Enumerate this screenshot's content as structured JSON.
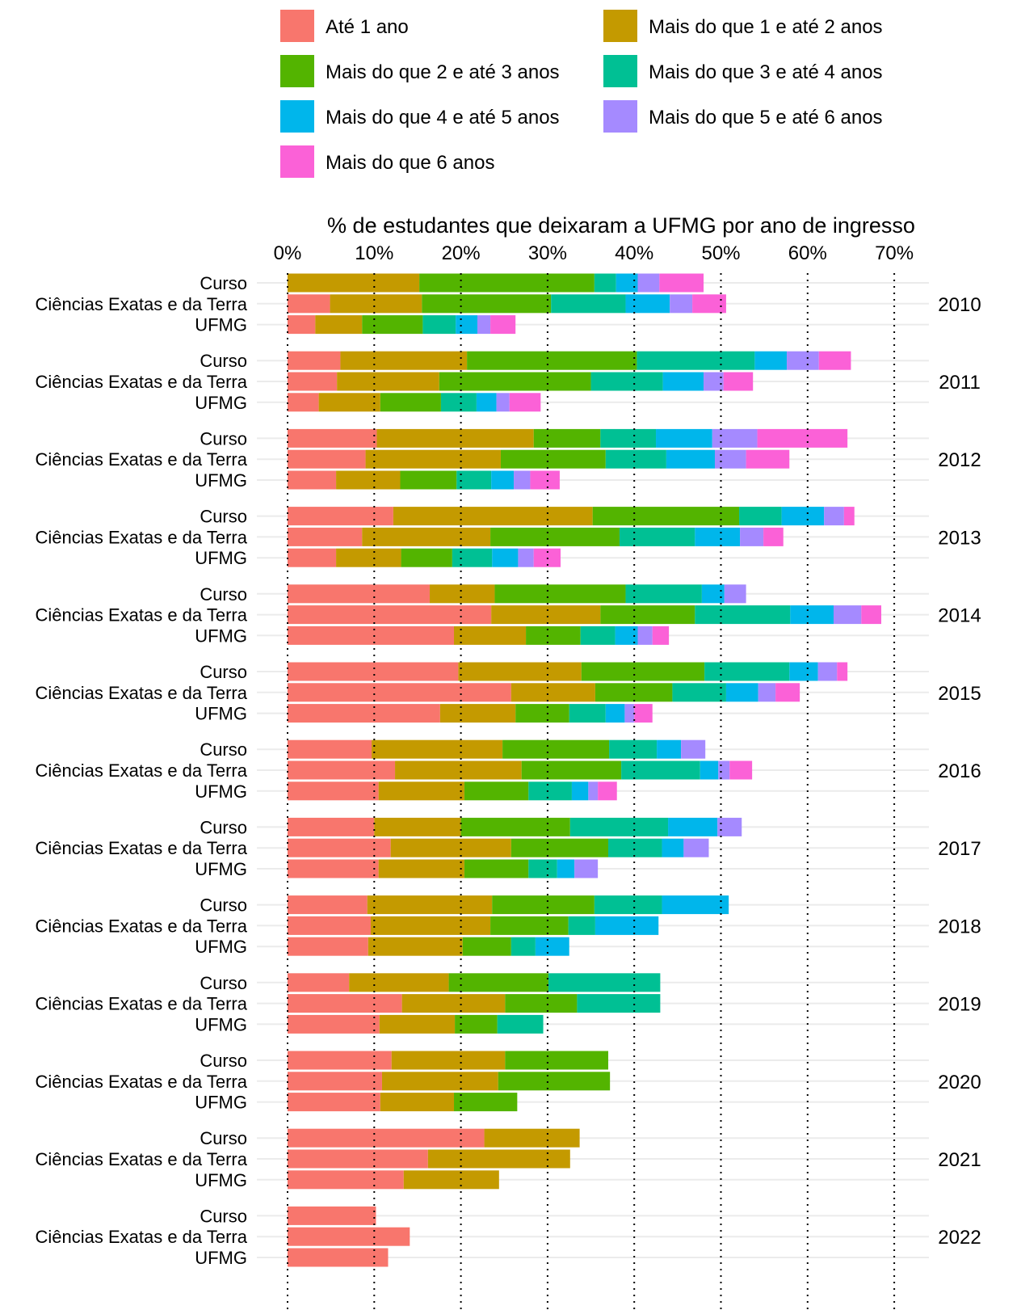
{
  "chart_data": {
    "type": "bar",
    "orientation": "horizontal",
    "stacked": true,
    "title": "% de estudantes que deixaram a UFMG por ano de ingresso",
    "x_ticks": [
      "0%",
      "10%",
      "20%",
      "30%",
      "40%",
      "50%",
      "60%",
      "70%"
    ],
    "x_tick_values": [
      0,
      10,
      20,
      30,
      40,
      50,
      60,
      70
    ],
    "xlim": [
      0,
      70
    ],
    "x_axis_position": "top",
    "grid": "dotted vertical",
    "legend_position": "top",
    "row_labels": [
      "Curso",
      "Ciências Exatas e da Terra",
      "UFMG"
    ],
    "series": [
      {
        "name": "Até 1 ano",
        "color": "#F8766D"
      },
      {
        "name": "Mais do que 1 e até 2 anos",
        "color": "#C49A00"
      },
      {
        "name": "Mais do que 2 e até 3 anos",
        "color": "#53B400"
      },
      {
        "name": "Mais do que 3 e até 4 anos",
        "color": "#00C094"
      },
      {
        "name": "Mais do que 4 e até 5 anos",
        "color": "#00B6EB"
      },
      {
        "name": "Mais do que 5 e até 6 anos",
        "color": "#A58AFF"
      },
      {
        "name": "Mais do que 6 anos",
        "color": "#FB61D7"
      }
    ],
    "groups": [
      {
        "year": "2010",
        "rows": [
          [
            0,
            15.2,
            20.2,
            2.5,
            2.5,
            2.5,
            5.1
          ],
          [
            4.9,
            10.6,
            14.9,
            8.6,
            5.1,
            2.6,
            3.9
          ],
          [
            3.2,
            5.4,
            7.0,
            3.8,
            2.5,
            1.5,
            2.9
          ]
        ]
      },
      {
        "year": "2011",
        "rows": [
          [
            6.1,
            14.6,
            19.6,
            13.6,
            3.7,
            3.7,
            3.7
          ],
          [
            5.7,
            11.8,
            17.5,
            8.3,
            4.7,
            2.3,
            3.4
          ],
          [
            3.6,
            7.1,
            7.0,
            4.1,
            2.3,
            1.5,
            3.6
          ]
        ]
      },
      {
        "year": "2012",
        "rows": [
          [
            10.3,
            18.1,
            7.7,
            6.4,
            6.5,
            5.2,
            10.4
          ],
          [
            9.0,
            15.6,
            12.1,
            7.0,
            5.6,
            3.6,
            5.0
          ],
          [
            5.6,
            7.4,
            6.5,
            4.0,
            2.6,
            1.9,
            3.4
          ]
        ]
      },
      {
        "year": "2013",
        "rows": [
          [
            12.2,
            23.0,
            16.9,
            4.9,
            4.9,
            2.3,
            1.2
          ],
          [
            8.6,
            14.8,
            14.9,
            8.7,
            5.2,
            2.7,
            2.3
          ],
          [
            5.6,
            7.5,
            5.9,
            4.6,
            3.0,
            1.8,
            3.1
          ]
        ]
      },
      {
        "year": "2014",
        "rows": [
          [
            16.4,
            7.5,
            15.1,
            8.8,
            2.6,
            2.5,
            0
          ],
          [
            23.5,
            12.6,
            10.9,
            11.0,
            5.0,
            3.2,
            2.3
          ],
          [
            19.2,
            8.3,
            6.3,
            4.0,
            2.6,
            1.7,
            1.9
          ]
        ]
      },
      {
        "year": "2015",
        "rows": [
          [
            19.7,
            14.2,
            14.2,
            9.8,
            3.3,
            2.2,
            1.2
          ],
          [
            25.8,
            9.7,
            8.9,
            6.2,
            3.7,
            2.0,
            2.8
          ],
          [
            17.6,
            8.7,
            6.2,
            4.2,
            2.2,
            1.1,
            2.1
          ]
        ]
      },
      {
        "year": "2016",
        "rows": [
          [
            9.7,
            15.1,
            12.3,
            5.5,
            2.8,
            2.8,
            0
          ],
          [
            12.4,
            14.6,
            11.5,
            9.1,
            2.1,
            1.3,
            2.6
          ],
          [
            10.5,
            9.9,
            7.4,
            5.0,
            1.9,
            1.1,
            2.2
          ]
        ]
      },
      {
        "year": "2017",
        "rows": [
          [
            10.0,
            10.0,
            12.6,
            11.3,
            5.7,
            2.8,
            0
          ],
          [
            11.9,
            13.9,
            11.2,
            6.2,
            2.5,
            2.9,
            0
          ],
          [
            10.5,
            9.9,
            7.4,
            3.3,
            2.0,
            2.7,
            0
          ]
        ]
      },
      {
        "year": "2018",
        "rows": [
          [
            9.2,
            14.4,
            11.8,
            7.8,
            7.7,
            0,
            0
          ],
          [
            9.6,
            13.8,
            9.0,
            3.1,
            7.3,
            0,
            0
          ],
          [
            9.3,
            10.9,
            5.6,
            2.8,
            3.9,
            0,
            0
          ]
        ]
      },
      {
        "year": "2019",
        "rows": [
          [
            7.1,
            11.5,
            11.5,
            12.9,
            0,
            0,
            0
          ],
          [
            13.2,
            11.9,
            8.3,
            9.6,
            0,
            0,
            0
          ],
          [
            10.6,
            8.7,
            4.9,
            5.3,
            0,
            0,
            0
          ]
        ]
      },
      {
        "year": "2020",
        "rows": [
          [
            12.0,
            13.1,
            11.9,
            0,
            0,
            0,
            0
          ],
          [
            10.9,
            13.4,
            12.9,
            0,
            0,
            0,
            0
          ],
          [
            10.7,
            8.5,
            7.3,
            0,
            0,
            0,
            0
          ]
        ]
      },
      {
        "year": "2021",
        "rows": [
          [
            22.7,
            11.0,
            0,
            0,
            0,
            0,
            0
          ],
          [
            16.2,
            16.4,
            0,
            0,
            0,
            0,
            0
          ],
          [
            13.4,
            11.0,
            0,
            0,
            0,
            0,
            0
          ]
        ]
      },
      {
        "year": "2022",
        "rows": [
          [
            10.2,
            0,
            0,
            0,
            0,
            0,
            0
          ],
          [
            14.1,
            0,
            0,
            0,
            0,
            0,
            0
          ],
          [
            11.6,
            0,
            0,
            0,
            0,
            0,
            0
          ]
        ]
      }
    ]
  }
}
